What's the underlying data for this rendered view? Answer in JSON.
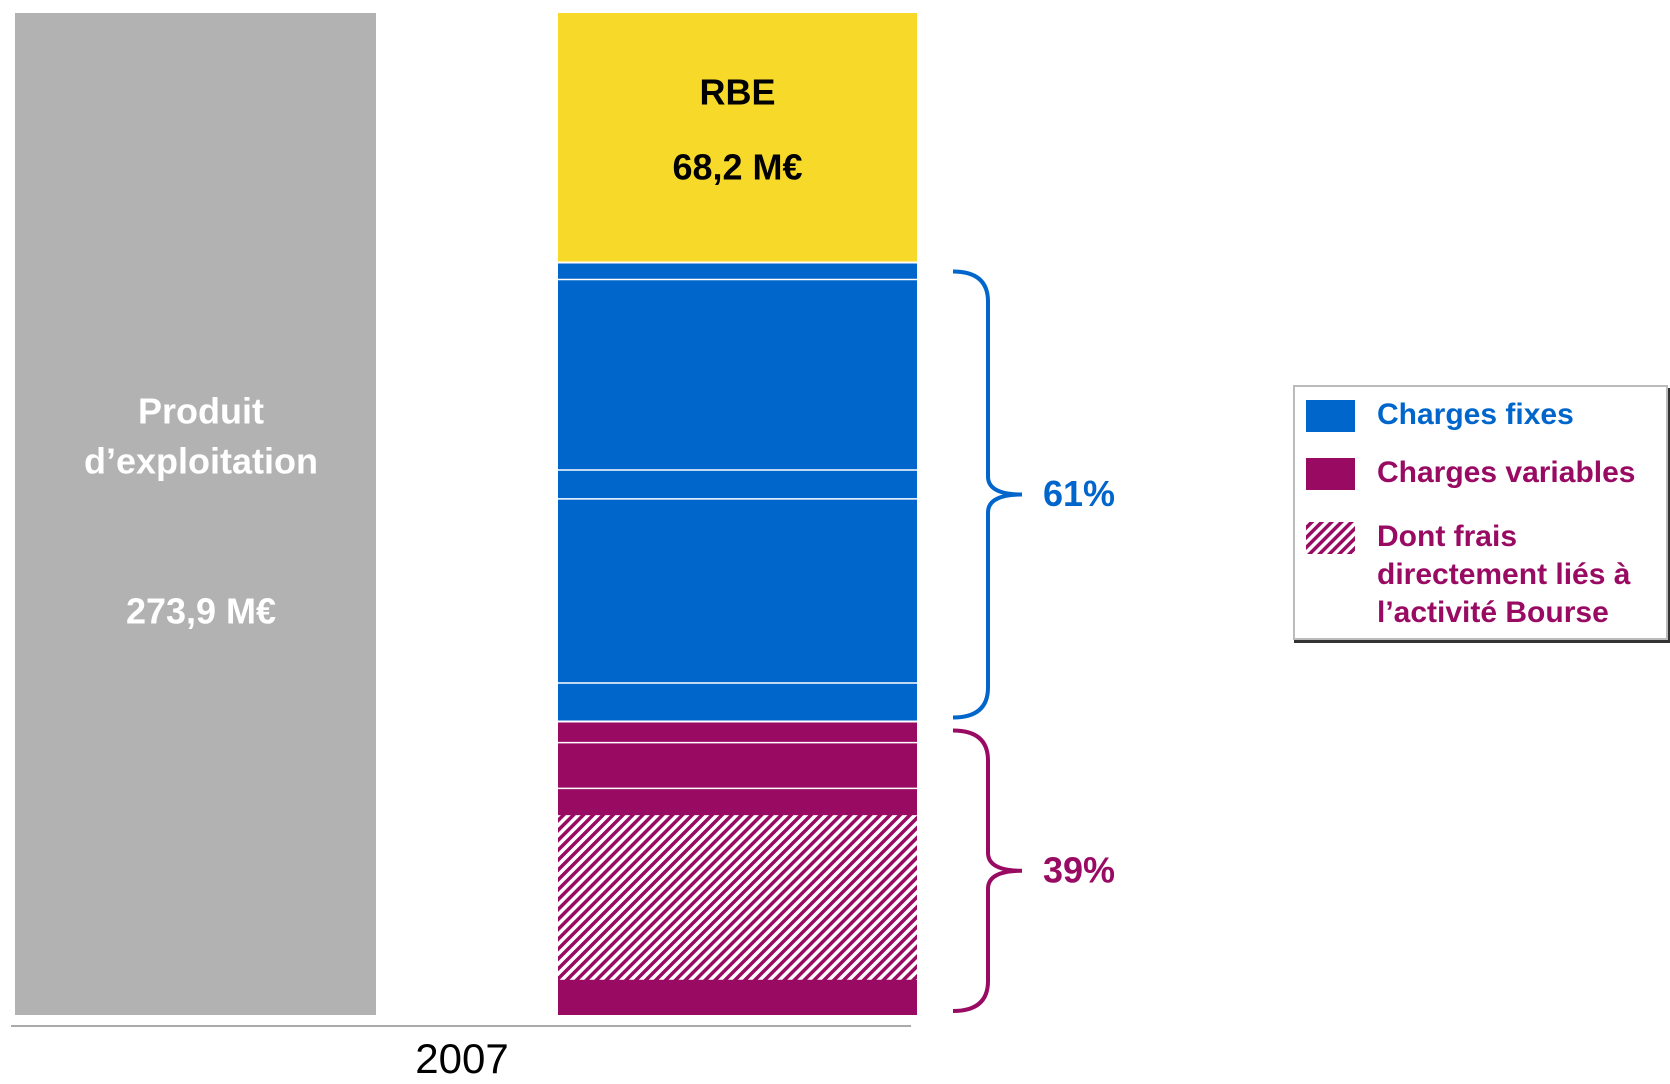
{
  "chart_data": {
    "type": "bar",
    "categories": [
      "2007"
    ],
    "total": {
      "label_lines": [
        "Produit",
        "d’exploitation"
      ],
      "value": 273.9,
      "value_label": "273,9 M€",
      "color": "#b2b2b2"
    },
    "rbe": {
      "label": "RBE",
      "value": 68.2,
      "value_label": "68,2 M€",
      "color": "#f7d92a"
    },
    "series": [
      {
        "name": "Charges fixes",
        "color": "#0066cc",
        "value": 61,
        "value_label": "61%"
      },
      {
        "name": "Charges variables",
        "color": "#990a63",
        "value": 39,
        "value_label": "39%"
      }
    ],
    "hatch_legend": {
      "lines": [
        "Dont frais",
        "directement liés à",
        "l’activité Bourse"
      ],
      "color": "#990a63"
    }
  }
}
